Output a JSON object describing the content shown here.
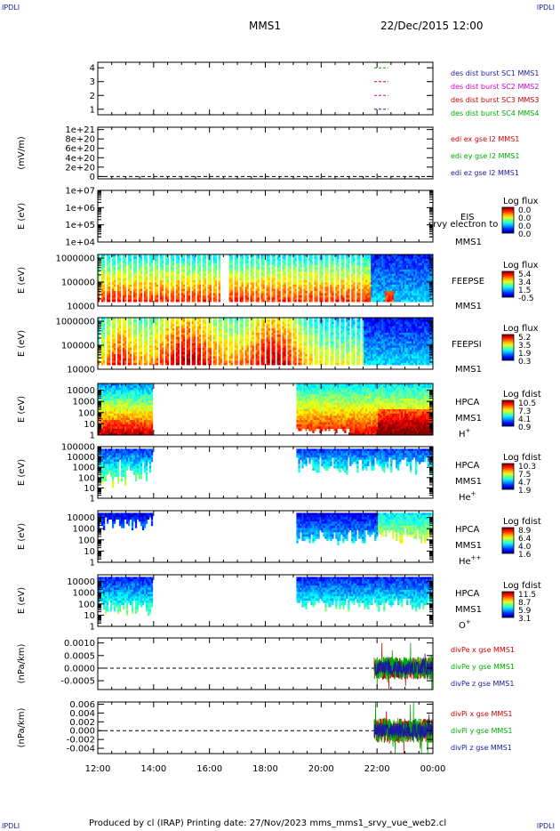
{
  "corner_tag": "IPDLI",
  "header": {
    "spacecraft": "MMS1",
    "datetime": "22/Dec/2015 12:00"
  },
  "footer": {
    "text": "Produced by cl (IRAP)   Printing date: 27/Nov/2023   mms_mms1_srvy_vue_web2.cl"
  },
  "chart_data": {
    "type": "multi-panel time series",
    "x_ticks": [
      "12:00",
      "14:00",
      "16:00",
      "18:00",
      "20:00",
      "22:00",
      "00:00"
    ],
    "x_range_hours": [
      12,
      24
    ],
    "panels": [
      {
        "id": "p1",
        "kind": "line",
        "ytick_labels": [
          "4",
          "3",
          "2",
          "1"
        ],
        "ytick_values": [
          4,
          3,
          2,
          1
        ],
        "ylim": [
          0.6,
          4.4
        ],
        "ylabel": "",
        "legend": [
          {
            "text": "des dist burst SC1 MMS1",
            "color": "#1a1aa0"
          },
          {
            "text": "des dist burst SC2 MMS2",
            "color": "#cc00cc"
          },
          {
            "text": "des dist burst SC3 MMS3",
            "color": "#d00000"
          },
          {
            "text": "des dist burst SC4 MMS4",
            "color": "#00aa00"
          }
        ],
        "series": [
          {
            "color": "#00aa00",
            "y": 4,
            "x": [
              21.9,
              22.4
            ]
          },
          {
            "color": "#d00000",
            "y": 3,
            "x": [
              21.9,
              22.4
            ]
          },
          {
            "color": "#cc00cc",
            "y": 2,
            "x": [
              21.9,
              22.4
            ]
          },
          {
            "color": "#1a1aa0",
            "y": 1,
            "x": [
              21.9,
              22.4
            ]
          }
        ]
      },
      {
        "id": "p2",
        "kind": "line",
        "ytick_labels": [
          "1e+21",
          "8e+20",
          "6e+20",
          "4e+20",
          "2e+20",
          "0"
        ],
        "ytick_values": [
          1e+21,
          8e+20,
          6e+20,
          4e+20,
          2e+20,
          0
        ],
        "ylim": [
          -5e+19,
          1.05e+21
        ],
        "ylabel": "(mV/m)",
        "zero_line": true,
        "legend": [
          {
            "text": "edi ex gse l2 MMS1",
            "color": "#d00000"
          },
          {
            "text": "edi ey gse l2 MMS1",
            "color": "#00aa00"
          },
          {
            "text": "edi ez gse l2 MMS1",
            "color": "#1a1aa0"
          }
        ]
      },
      {
        "id": "p3",
        "kind": "spectrogram",
        "ytick_labels": [
          "1e+07",
          "1e+06",
          "1e+05",
          "1e+04"
        ],
        "log_range": [
          4,
          7
        ],
        "ylabel": "E (eV)",
        "side_labels": [
          "EIS",
          "MMS1"
        ],
        "overlay": "srvy electron to",
        "colorbar": {
          "title": "Log flux",
          "ticks": [
            "0.0",
            "0.0",
            "0.0",
            "0.0"
          ]
        },
        "coverage": []
      },
      {
        "id": "p4",
        "kind": "spectrogram",
        "ytick_labels": [
          "1000000",
          "100000",
          "10000"
        ],
        "log_range": [
          4,
          6.15
        ],
        "ylabel": "E (eV)",
        "side_labels": [
          "FEEPSE",
          "MMS1"
        ],
        "colorbar": {
          "title": "Log flux",
          "ticks": [
            "5.4",
            "3.4",
            "1.5",
            "-0.5"
          ]
        },
        "coverage": [
          [
            12,
            24
          ]
        ],
        "pattern": "feepse"
      },
      {
        "id": "p5",
        "kind": "spectrogram",
        "ytick_labels": [
          "1000000",
          "100000",
          "10000"
        ],
        "log_range": [
          4,
          6.15
        ],
        "ylabel": "E (eV)",
        "side_labels": [
          "FEEPSI",
          "MMS1"
        ],
        "colorbar": {
          "title": "Log flux",
          "ticks": [
            "5.2",
            "3.5",
            "1.9",
            "0.3"
          ]
        },
        "coverage": [
          [
            12,
            24
          ]
        ],
        "pattern": "feepsi"
      },
      {
        "id": "p6",
        "kind": "spectrogram",
        "ytick_labels": [
          "10000",
          "1000",
          "100",
          "10",
          "1"
        ],
        "log_range": [
          0,
          4.6
        ],
        "ylabel": "E (eV)",
        "side_labels": [
          "HPCA",
          "MMS1"
        ],
        "species": "H",
        "species_sup": "+",
        "colorbar": {
          "title": "Log fdist",
          "ticks": [
            "10.5",
            "7.3",
            "4.1",
            "0.9"
          ]
        },
        "coverage": [
          [
            12,
            13.95
          ],
          [
            19.1,
            24
          ]
        ],
        "pattern": "h"
      },
      {
        "id": "p7",
        "kind": "spectrogram",
        "ytick_labels": [
          "100000",
          "10000",
          "1000",
          "100",
          "10",
          "1"
        ],
        "log_range": [
          0,
          5
        ],
        "ylabel": "E (eV)",
        "side_labels": [
          "HPCA",
          "MMS1"
        ],
        "species": "He",
        "species_sup": "+",
        "colorbar": {
          "title": "Log fdist",
          "ticks": [
            "10.3",
            "7.5",
            "4.7",
            "1.9"
          ]
        },
        "coverage": [
          [
            12,
            13.95
          ],
          [
            19.1,
            24
          ]
        ],
        "pattern": "he"
      },
      {
        "id": "p8",
        "kind": "spectrogram",
        "ytick_labels": [
          "10000",
          "1000",
          "100",
          "10",
          "1"
        ],
        "log_range": [
          0,
          4.6
        ],
        "ylabel": "E (eV)",
        "side_labels": [
          "HPCA",
          "MMS1"
        ],
        "species": "He",
        "species_sup": "++",
        "colorbar": {
          "title": "Log fdist",
          "ticks": [
            "8.9",
            "6.4",
            "4.0",
            "1.6"
          ]
        },
        "coverage": [
          [
            12,
            13.95
          ],
          [
            19.1,
            24
          ]
        ],
        "pattern": "he2"
      },
      {
        "id": "p9",
        "kind": "spectrogram",
        "ytick_labels": [
          "10000",
          "1000",
          "100",
          "10",
          "1"
        ],
        "log_range": [
          0,
          4.6
        ],
        "ylabel": "E (eV)",
        "side_labels": [
          "HPCA",
          "MMS1"
        ],
        "species": "O",
        "species_sup": "+",
        "colorbar": {
          "title": "Log fdist",
          "ticks": [
            "11.5",
            "8.7",
            "5.9",
            "3.1"
          ]
        },
        "coverage": [
          [
            12,
            13.95
          ],
          [
            19.1,
            24
          ]
        ],
        "pattern": "o"
      },
      {
        "id": "p10",
        "kind": "line",
        "ytick_labels": [
          "0.0010",
          "0.0005",
          "0.0000",
          "-0.0005"
        ],
        "ytick_values": [
          0.001,
          0.0005,
          0,
          -0.0005
        ],
        "ylim": [
          -0.00085,
          0.0012
        ],
        "ylabel": "(nPa/km)",
        "zero_line": true,
        "legend": [
          {
            "text": "divPe x gse MMS1",
            "color": "#d00000"
          },
          {
            "text": "divPe y gse MMS1",
            "color": "#00aa00"
          },
          {
            "text": "divPe z gse MMS1",
            "color": "#1a1aa0"
          }
        ],
        "burst": {
          "x": [
            21.9,
            24
          ],
          "amplitude": 0.00045
        }
      },
      {
        "id": "p11",
        "kind": "line",
        "ytick_labels": [
          "0.006",
          "0.004",
          "0.002",
          "0.000",
          "-0.002",
          "-0.004"
        ],
        "ytick_values": [
          0.006,
          0.004,
          0.002,
          0,
          -0.002,
          -0.004
        ],
        "ylim": [
          -0.0052,
          0.0065
        ],
        "ylabel": "(nPa/km)",
        "zero_line": true,
        "legend": [
          {
            "text": "divPi x gse MMS1",
            "color": "#d00000"
          },
          {
            "text": "divPi y gse MMS1",
            "color": "#00aa00"
          },
          {
            "text": "divPi z gse MMS1",
            "color": "#1a1aa0"
          }
        ],
        "burst": {
          "x": [
            21.9,
            24
          ],
          "amplitude": 0.0028
        }
      }
    ]
  }
}
